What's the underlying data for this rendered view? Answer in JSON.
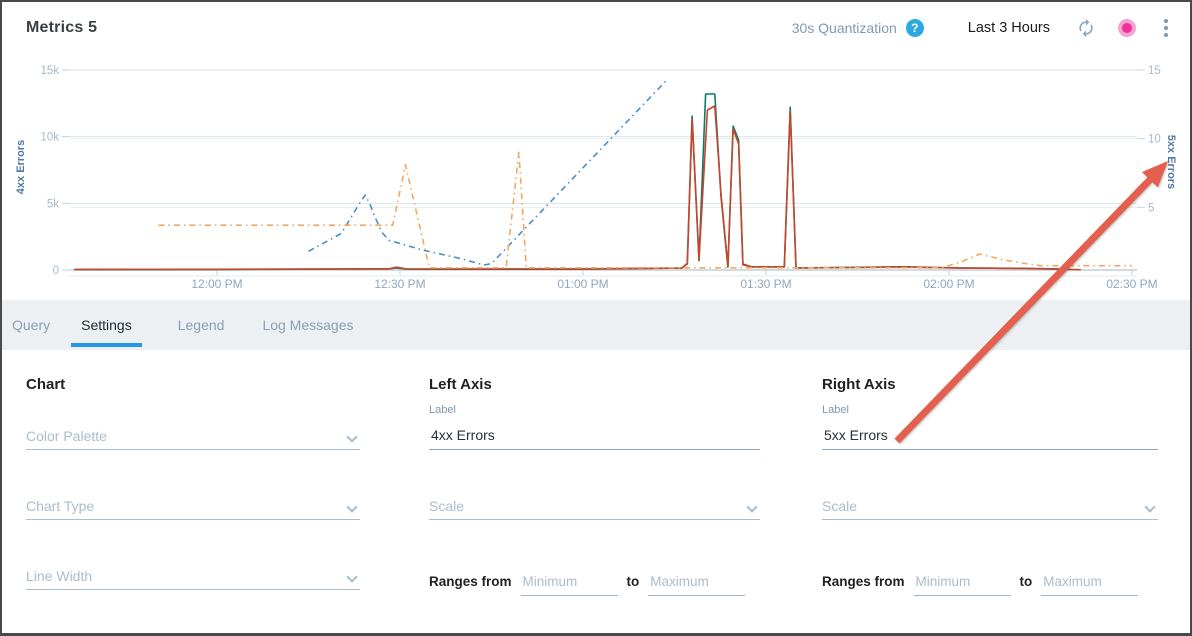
{
  "header": {
    "title": "Metrics 5",
    "quantization_label": "30s Quantization",
    "help_icon": "?",
    "time_range": "Last 3 Hours"
  },
  "tabs": [
    {
      "label": "Query",
      "active": false
    },
    {
      "label": "Settings",
      "active": true
    },
    {
      "label": "Legend",
      "active": false
    },
    {
      "label": "Log Messages",
      "active": false
    }
  ],
  "chart_data": {
    "type": "line",
    "title": "",
    "x_axis": {
      "ticks": [
        {
          "hour": 12,
          "label": "12:00 PM"
        },
        {
          "hour": 12.5,
          "label": "12:30 PM"
        },
        {
          "hour": 13,
          "label": "01:00 PM"
        },
        {
          "hour": 13.5,
          "label": "01:30 PM"
        },
        {
          "hour": 14,
          "label": "02:00 PM"
        },
        {
          "hour": 14.5,
          "label": "02:30 PM"
        }
      ],
      "range_hours": [
        11.6,
        14.52
      ]
    },
    "left_axis": {
      "label": "4xx Errors",
      "range": [
        0,
        15000
      ],
      "ticks": [
        {
          "v": 0,
          "label": "0"
        },
        {
          "v": 5000,
          "label": "5k"
        },
        {
          "v": 10000,
          "label": "10k"
        },
        {
          "v": 15000,
          "label": "15k"
        }
      ]
    },
    "right_axis": {
      "label": "5xx Errors",
      "range": [
        0,
        15
      ],
      "ticks": [
        {
          "v": 5,
          "label": "5"
        },
        {
          "v": 10,
          "label": "10"
        },
        {
          "v": 15,
          "label": "15"
        }
      ]
    },
    "grid": true,
    "legend_position": "none",
    "series": [
      {
        "name": "solid-teal",
        "axis": "left",
        "color": "#0d7a70",
        "style": "solid",
        "points": [
          [
            11.61,
            30
          ],
          [
            12.0,
            40
          ],
          [
            12.47,
            80
          ],
          [
            12.49,
            150
          ],
          [
            12.52,
            60
          ],
          [
            13.0,
            60
          ],
          [
            13.27,
            140
          ],
          [
            13.285,
            500
          ],
          [
            13.298,
            11550
          ],
          [
            13.317,
            700
          ],
          [
            13.335,
            13200
          ],
          [
            13.36,
            13200
          ],
          [
            13.377,
            5500
          ],
          [
            13.396,
            220
          ],
          [
            13.41,
            10800
          ],
          [
            13.425,
            9750
          ],
          [
            13.437,
            450
          ],
          [
            13.46,
            230
          ],
          [
            13.55,
            230
          ],
          [
            13.566,
            12200
          ],
          [
            13.582,
            160
          ],
          [
            13.76,
            200
          ],
          [
            13.87,
            240
          ],
          [
            14.02,
            160
          ],
          [
            14.2,
            130
          ],
          [
            14.3,
            80
          ]
        ]
      },
      {
        "name": "solid-red",
        "axis": "left",
        "color": "#c9452a",
        "style": "solid",
        "points": [
          [
            11.61,
            45
          ],
          [
            12.0,
            55
          ],
          [
            12.47,
            90
          ],
          [
            12.49,
            210
          ],
          [
            12.52,
            75
          ],
          [
            13.0,
            80
          ],
          [
            13.27,
            150
          ],
          [
            13.285,
            450
          ],
          [
            13.298,
            11300
          ],
          [
            13.317,
            760
          ],
          [
            13.34,
            12000
          ],
          [
            13.36,
            12300
          ],
          [
            13.377,
            5700
          ],
          [
            13.396,
            240
          ],
          [
            13.41,
            10600
          ],
          [
            13.425,
            9450
          ],
          [
            13.437,
            380
          ],
          [
            13.46,
            240
          ],
          [
            13.55,
            230
          ],
          [
            13.566,
            11900
          ],
          [
            13.582,
            150
          ],
          [
            13.76,
            190
          ],
          [
            13.87,
            230
          ],
          [
            14.02,
            150
          ],
          [
            14.2,
            110
          ],
          [
            14.36,
            20
          ]
        ]
      },
      {
        "name": "dashdot-blue",
        "axis": "right",
        "color": "#4a8cc9",
        "style": "dashdot",
        "points": [
          [
            12.25,
            1.8
          ],
          [
            12.34,
            3.1
          ],
          [
            12.385,
            5.1
          ],
          [
            12.405,
            5.9
          ],
          [
            12.42,
            5.1
          ],
          [
            12.43,
            4.4
          ],
          [
            12.45,
            3.2
          ],
          [
            12.47,
            2.6
          ],
          [
            12.56,
            1.9
          ],
          [
            12.66,
            1.3
          ],
          [
            12.73,
            0.8
          ],
          [
            12.75,
            0.9
          ],
          [
            13.23,
            14.3
          ]
        ]
      },
      {
        "name": "dashdot-orange",
        "axis": "right",
        "color": "#f7a55e",
        "style": "dashdot",
        "points": [
          [
            11.84,
            3.7
          ],
          [
            12.48,
            3.7
          ],
          [
            12.515,
            8.1
          ],
          [
            12.58,
            0.6
          ],
          [
            12.79,
            0.6
          ],
          [
            12.825,
            9.0
          ],
          [
            12.845,
            0.6
          ],
          [
            13.98,
            0.6
          ],
          [
            14.03,
            1.0
          ],
          [
            14.085,
            1.6
          ],
          [
            14.145,
            1.2
          ],
          [
            14.2,
            0.95
          ],
          [
            14.25,
            0.75
          ],
          [
            14.5,
            0.75
          ]
        ]
      }
    ]
  },
  "settings": {
    "chart_column": {
      "heading": "Chart",
      "fields": {
        "color_palette": "Color Palette",
        "chart_type": "Chart Type",
        "line_width": "Line Width"
      }
    },
    "left_axis_column": {
      "heading": "Left Axis",
      "label_caption": "Label",
      "label_value": "4xx Errors",
      "scale_placeholder": "Scale",
      "ranges_prefix": "Ranges from",
      "ranges_to": "to",
      "min_placeholder": "Minimum",
      "max_placeholder": "Maximum"
    },
    "right_axis_column": {
      "heading": "Right Axis",
      "label_caption": "Label",
      "label_value": "5xx Errors",
      "scale_placeholder": "Scale",
      "ranges_prefix": "Ranges from",
      "ranges_to": "to",
      "min_placeholder": "Minimum",
      "max_placeholder": "Maximum"
    }
  },
  "annotation_arrow": {
    "from": [
      895,
      439
    ],
    "to": [
      1166,
      159
    ],
    "color": "#e4604e"
  },
  "colors": {
    "tab_active_underline": "#2596e8",
    "help_icon_bg": "#2ba9e0",
    "live_dot": "#ee2f9e",
    "live_dot_ring": "#f7a3d0",
    "axis_title": "#4e7aa2",
    "tick_label": "#a5bacd",
    "x_tick_label": "#8ea8be",
    "tab_bar_bg": "#ecf0f2"
  }
}
